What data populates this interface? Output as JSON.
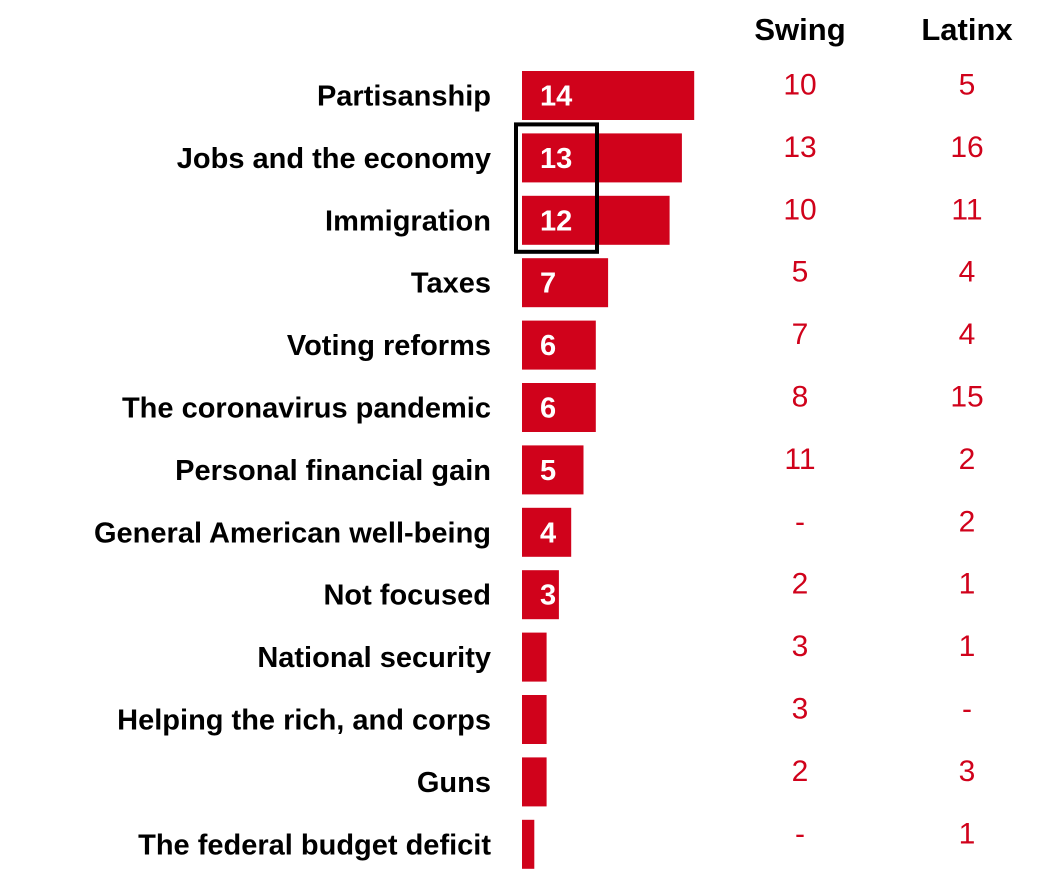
{
  "chart_data": {
    "type": "bar",
    "orientation": "horizontal",
    "categories": [
      "Partisanship",
      "Jobs and the economy",
      "Immigration",
      "Taxes",
      "Voting reforms",
      "The coronavirus pandemic",
      "Personal financial gain",
      "General American well-being",
      "Not focused",
      "National security",
      "Helping the rich, and corps",
      "Guns",
      "The federal budget deficit"
    ],
    "values": [
      14,
      13,
      12,
      7,
      6,
      6,
      5,
      4,
      3,
      2,
      2,
      2,
      1
    ],
    "value_labels": [
      "14",
      "13",
      "12",
      "7",
      "6",
      "6",
      "5",
      "4",
      "3",
      "",
      "",
      "",
      ""
    ],
    "highlighted_categories": [
      "Jobs and the economy",
      "Immigration"
    ],
    "columns": [
      {
        "header": "Swing",
        "values": [
          "10",
          "13",
          "10",
          "5",
          "7",
          "8",
          "11",
          "-",
          "2",
          "3",
          "3",
          "2",
          "-"
        ]
      },
      {
        "header": "Latinx",
        "values": [
          "5",
          "16",
          "11",
          "4",
          "4",
          "15",
          "2",
          "2",
          "1",
          "1",
          "-",
          "3",
          "1"
        ]
      }
    ],
    "colors": {
      "bar": "#d0021b",
      "column_text": "#d0021b",
      "highlight_box": "#000000"
    },
    "grid": false,
    "legend": "none"
  }
}
